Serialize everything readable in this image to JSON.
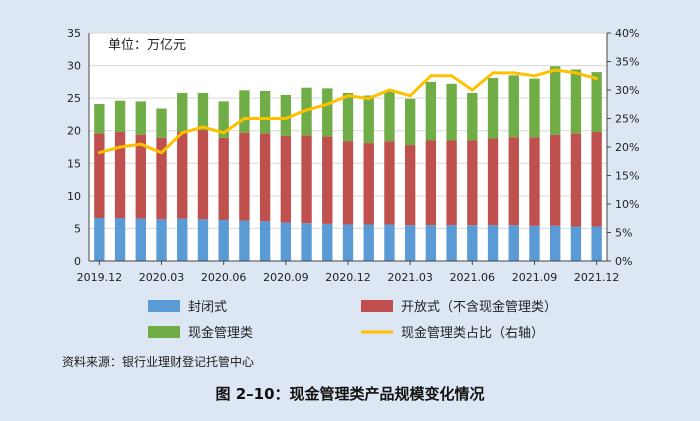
{
  "figure": {
    "unit_label": "单位：万亿元",
    "source": "资料来源：银行业理财登记托管中心",
    "caption": "图 2–10：现金管理类产品规模变化情况"
  },
  "colors": {
    "closed": "#5b9bd5",
    "open": "#c0504d",
    "cash": "#70ad47",
    "ratio": "#ffc000",
    "background": "#dde7f4",
    "plot_bg": "#ffffff"
  },
  "chart_data": {
    "type": "bar",
    "stacked": true,
    "categories": [
      "2019.12",
      "2020.01",
      "2020.02",
      "2020.03",
      "2020.04",
      "2020.05",
      "2020.06",
      "2020.07",
      "2020.08",
      "2020.09",
      "2020.10",
      "2020.11",
      "2020.12",
      "2021.01",
      "2021.02",
      "2021.03",
      "2021.04",
      "2021.05",
      "2021.06",
      "2021.07",
      "2021.08",
      "2021.09",
      "2021.10",
      "2021.11",
      "2021.12"
    ],
    "x_tick_labels": [
      "2019.12",
      "2020.03",
      "2020.06",
      "2020.09",
      "2020.12",
      "2021.03",
      "2021.06",
      "2021.09",
      "2021.12"
    ],
    "x_tick_indices": [
      0,
      3,
      6,
      9,
      12,
      15,
      18,
      21,
      24
    ],
    "series": [
      {
        "name": "封闭式",
        "key": "closed",
        "axis": "left",
        "values": [
          6.6,
          6.6,
          6.5,
          6.4,
          6.5,
          6.4,
          6.3,
          6.2,
          6.1,
          5.9,
          5.8,
          5.7,
          5.6,
          5.6,
          5.6,
          5.5,
          5.5,
          5.5,
          5.5,
          5.5,
          5.5,
          5.4,
          5.4,
          5.3,
          5.3
        ]
      },
      {
        "name": "开放式（不含现金管理类）",
        "key": "open",
        "axis": "left",
        "values": [
          13.0,
          13.2,
          12.9,
          12.5,
          13.3,
          13.7,
          12.6,
          13.5,
          13.5,
          13.3,
          13.5,
          13.4,
          12.8,
          12.5,
          12.8,
          12.3,
          13.0,
          13.0,
          13.0,
          13.3,
          13.5,
          13.6,
          14.0,
          14.3,
          14.5
        ]
      },
      {
        "name": "现金管理类",
        "key": "cash",
        "axis": "left",
        "values": [
          4.5,
          4.8,
          5.1,
          4.5,
          6.0,
          5.7,
          5.6,
          6.5,
          6.5,
          6.3,
          7.3,
          7.4,
          7.4,
          7.3,
          7.7,
          7.1,
          9.0,
          8.7,
          7.3,
          9.3,
          9.5,
          9.0,
          10.5,
          9.8,
          9.2
        ]
      },
      {
        "name": "现金管理类占比（右轴）",
        "key": "ratio",
        "axis": "right",
        "type": "line",
        "values": [
          19.0,
          20.0,
          20.5,
          19.0,
          22.5,
          23.5,
          22.5,
          25.0,
          25.0,
          25.0,
          26.5,
          27.5,
          29.0,
          28.5,
          30.0,
          29.0,
          32.5,
          32.5,
          30.0,
          33.0,
          33.0,
          32.5,
          33.5,
          33.0,
          32.0
        ]
      }
    ],
    "y_left": {
      "min": 0,
      "max": 35,
      "step": 5,
      "tick_labels": [
        "0",
        "5",
        "10",
        "15",
        "20",
        "25",
        "30",
        "35"
      ]
    },
    "y_right": {
      "min": 0,
      "max": 40,
      "step": 5,
      "tick_labels": [
        "0%",
        "5%",
        "10%",
        "15%",
        "20%",
        "25%",
        "30%",
        "35%",
        "40%"
      ]
    },
    "grid": true,
    "legend_position": "bottom"
  }
}
